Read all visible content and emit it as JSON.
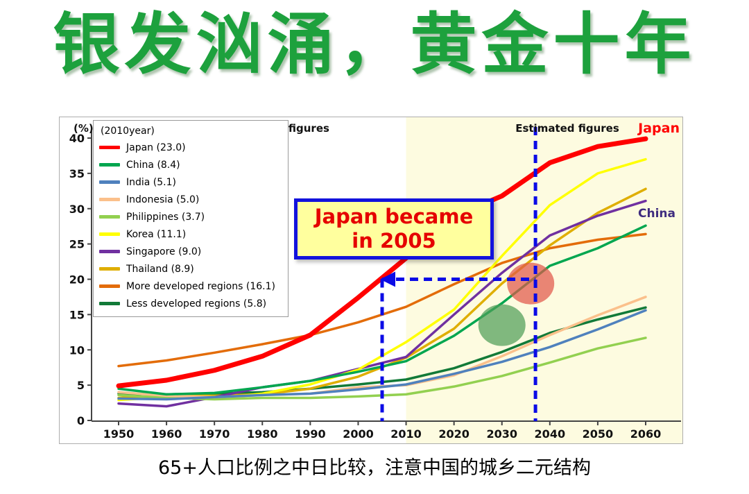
{
  "slide": {
    "title": "银发汹涌，黄金十年",
    "title_color": "#1da13d",
    "caption": "65+人口比例之中日比较，注意中国的城乡二元结构"
  },
  "chart": {
    "unit_label": "(%)",
    "legend_header": "(2010year)",
    "section_actual": "Actual figures",
    "section_estimated": "Estimated figures",
    "japan_end_label": "Japan",
    "japan_end_color": "#ff0000",
    "china_end_label": "China",
    "china_end_color": "#3f2c7f",
    "annotation_line1": "Japan became",
    "annotation_line2": "in 2005",
    "annotation_text_color": "#e50000",
    "annotation_bg": "#ffff9e",
    "annotation_border": "#1212dd"
  },
  "chart_data": {
    "type": "line",
    "x": [
      1950,
      1960,
      1970,
      1980,
      1990,
      2000,
      2010,
      2020,
      2030,
      2040,
      2050,
      2060
    ],
    "ylim": [
      0,
      40
    ],
    "yticks": [
      0,
      5,
      10,
      15,
      20,
      25,
      30,
      35,
      40
    ],
    "estimated_region_start": 2010,
    "estimated_region_color": "#fdfbe0",
    "legend_position": "top-left",
    "grid": false,
    "series": [
      {
        "name": "Japan",
        "value_2010": "23.0",
        "color": "#ff0000",
        "width": 7,
        "values": [
          4.9,
          5.7,
          7.1,
          9.1,
          12.1,
          17.4,
          23.0,
          28.9,
          31.8,
          36.5,
          38.8,
          39.9
        ]
      },
      {
        "name": "China",
        "value_2010": "8.4",
        "color": "#00a64f",
        "width": 3.5,
        "values": [
          4.5,
          3.7,
          3.9,
          4.7,
          5.6,
          6.9,
          8.4,
          12.0,
          16.6,
          21.9,
          24.4,
          27.6
        ]
      },
      {
        "name": "India",
        "value_2010": "5.1",
        "color": "#4f81bd",
        "width": 3.5,
        "values": [
          3.1,
          3.0,
          3.3,
          3.6,
          3.8,
          4.4,
          5.1,
          6.6,
          8.3,
          10.4,
          12.9,
          15.6
        ]
      },
      {
        "name": "Indonesia",
        "value_2010": "5.0",
        "color": "#fbc08b",
        "width": 3.5,
        "values": [
          4.0,
          3.5,
          3.3,
          3.6,
          3.8,
          4.7,
          5.0,
          6.4,
          9.1,
          12.1,
          14.9,
          17.5
        ]
      },
      {
        "name": "Philippines",
        "value_2010": "3.7",
        "color": "#92d050",
        "width": 3.5,
        "values": [
          3.6,
          3.2,
          3.0,
          3.2,
          3.2,
          3.4,
          3.7,
          4.8,
          6.3,
          8.2,
          10.2,
          11.7
        ]
      },
      {
        "name": "Korea",
        "value_2010": "11.1",
        "color": "#ffff00",
        "width": 3.5,
        "values": [
          2.9,
          3.3,
          3.1,
          3.8,
          5.1,
          7.2,
          11.1,
          15.7,
          23.3,
          30.5,
          35.0,
          37.0
        ]
      },
      {
        "name": "Singapore",
        "value_2010": "9.0",
        "color": "#7030a0",
        "width": 3.5,
        "values": [
          2.4,
          2.0,
          3.3,
          4.7,
          5.6,
          7.3,
          9.0,
          15.0,
          20.9,
          26.2,
          29.0,
          31.1
        ]
      },
      {
        "name": "Thailand",
        "value_2010": "8.9",
        "color": "#dfae00",
        "width": 3.5,
        "values": [
          3.2,
          3.5,
          3.5,
          3.7,
          4.5,
          6.2,
          8.9,
          13.0,
          19.4,
          24.8,
          29.4,
          32.8
        ]
      },
      {
        "name": "More developed regions",
        "value_2010": "16.1",
        "color": "#e36c09",
        "width": 3.5,
        "values": [
          7.7,
          8.5,
          9.6,
          10.8,
          12.1,
          13.9,
          16.1,
          19.3,
          22.3,
          24.4,
          25.6,
          26.4
        ]
      },
      {
        "name": "Less developed regions",
        "value_2010": "5.8",
        "color": "#127a38",
        "width": 3.5,
        "values": [
          3.8,
          3.7,
          3.8,
          4.0,
          4.5,
          5.1,
          5.8,
          7.4,
          9.7,
          12.4,
          14.3,
          16.0
        ]
      }
    ],
    "markers": {
      "dash_color": "#0b0be6",
      "highlight_year": 2005,
      "highlight_value": 20,
      "far_vline_year": 2037,
      "ellipses": [
        {
          "year": 2036,
          "value": 19.4,
          "color": "#e0584a"
        },
        {
          "year": 2030,
          "value": 13.5,
          "color": "#4f9e57"
        }
      ]
    }
  }
}
